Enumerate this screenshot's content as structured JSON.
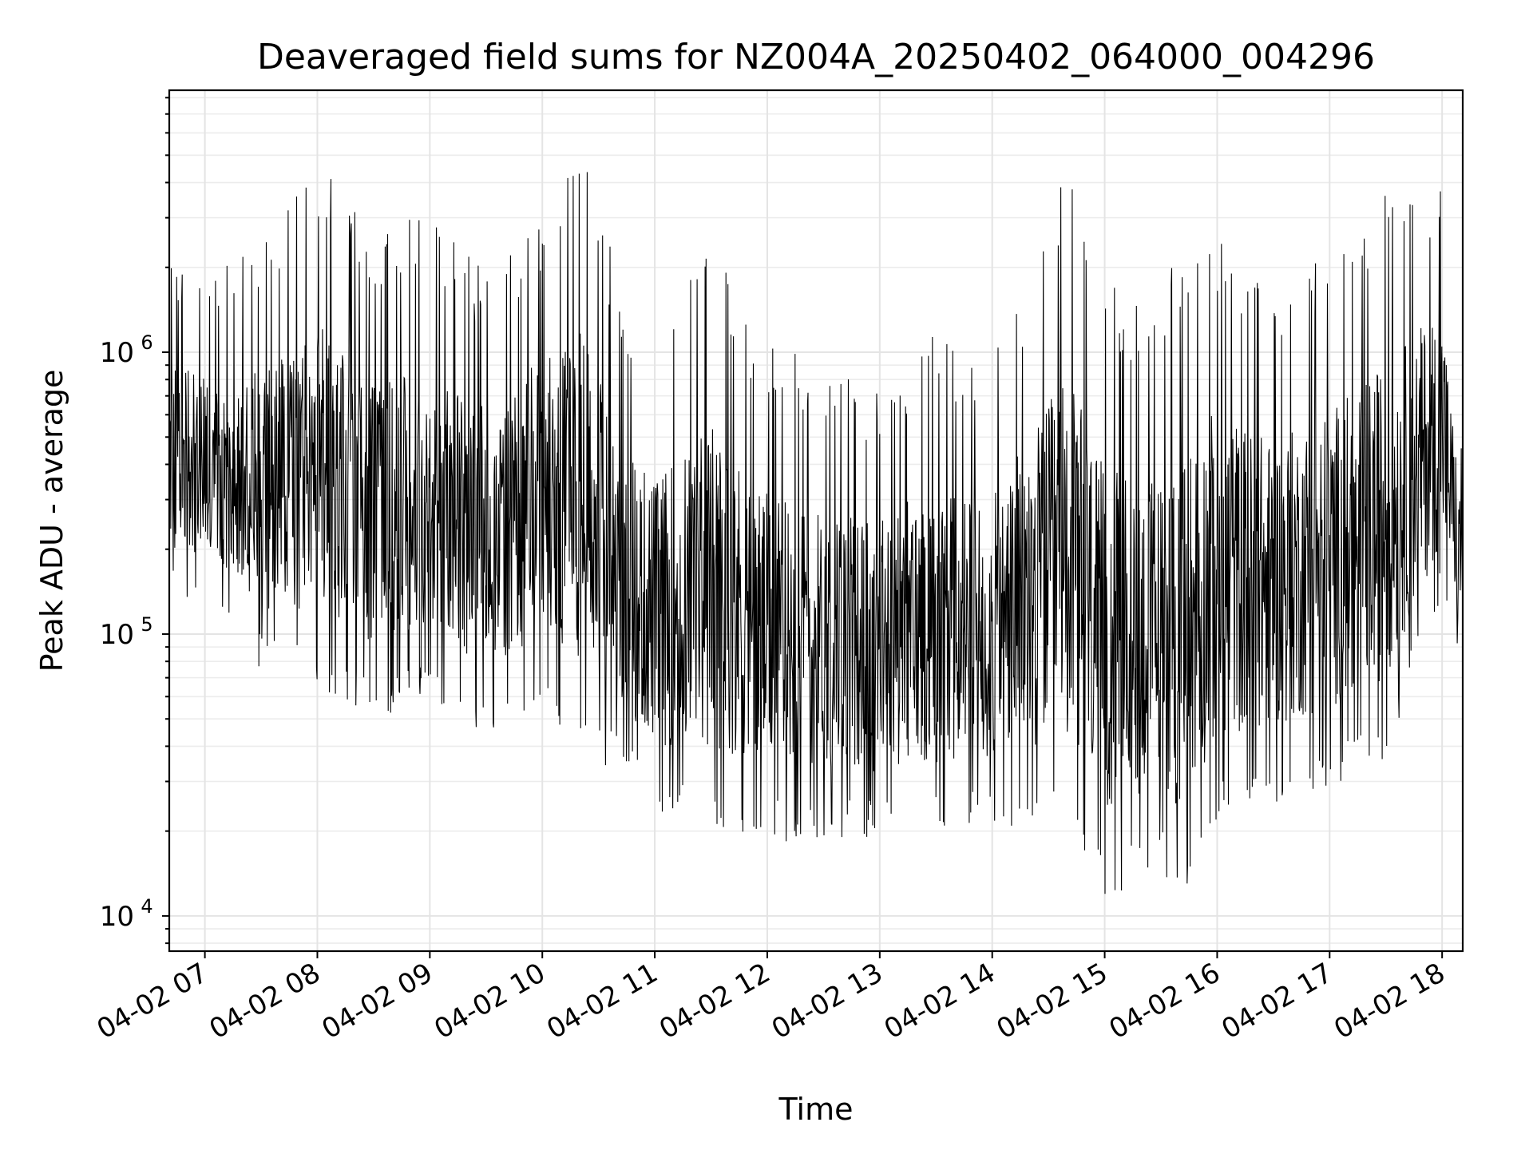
{
  "chart_data": {
    "type": "line",
    "title": "Deaveraged field sums for NZ004A_20250402_064000_004296",
    "xlabel": "Time",
    "ylabel": "Peak ADU - average",
    "y_scale": "log",
    "xlim": [
      "2025-04-02 06:41",
      "2025-04-02 18:11"
    ],
    "ylim": [
      7500,
      8500000
    ],
    "x_ticks": [
      "04-02 07",
      "04-02 08",
      "04-02 09",
      "04-02 10",
      "04-02 11",
      "04-02 12",
      "04-02 13",
      "04-02 14",
      "04-02 15",
      "04-02 16",
      "04-02 17",
      "04-02 18"
    ],
    "y_ticks": [
      {
        "value": 10000,
        "base": "10",
        "exp": "4"
      },
      {
        "value": 100000,
        "base": "10",
        "exp": "5"
      },
      {
        "value": 1000000,
        "base": "10",
        "exp": "6"
      }
    ],
    "grid": true,
    "line_color": "#000000",
    "series": [
      {
        "note_hidden": false,
        "x_start": "2025-04-02 06:41",
        "x_end": "2025-04-02 18:11",
        "envelope": [
          {
            "x": "2025-04-02 06:41",
            "low": 120000,
            "high": 2300000
          },
          {
            "x": "2025-04-02 07:00",
            "low": 150000,
            "high": 1700000
          },
          {
            "x": "2025-04-02 07:30",
            "low": 70000,
            "high": 2800000
          },
          {
            "x": "2025-04-02 08:00",
            "low": 65000,
            "high": 4800000
          },
          {
            "x": "2025-04-02 08:30",
            "low": 50000,
            "high": 2700000
          },
          {
            "x": "2025-04-02 09:00",
            "low": 55000,
            "high": 3300000
          },
          {
            "x": "2025-04-02 09:30",
            "low": 45000,
            "high": 2000000
          },
          {
            "x": "2025-04-02 10:00",
            "low": 50000,
            "high": 3500000
          },
          {
            "x": "2025-04-02 10:20",
            "low": 40000,
            "high": 6000000
          },
          {
            "x": "2025-04-02 10:45",
            "low": 30000,
            "high": 1500000
          },
          {
            "x": "2025-04-02 11:00",
            "low": 22000,
            "high": 1200000
          },
          {
            "x": "2025-04-02 11:30",
            "low": 20000,
            "high": 2500000
          },
          {
            "x": "2025-04-02 12:00",
            "low": 18000,
            "high": 1100000
          },
          {
            "x": "2025-04-02 12:30",
            "low": 19000,
            "high": 900000
          },
          {
            "x": "2025-04-02 13:00",
            "low": 18500,
            "high": 800000
          },
          {
            "x": "2025-04-02 13:30",
            "low": 19000,
            "high": 1300000
          },
          {
            "x": "2025-04-02 14:00",
            "low": 20000,
            "high": 1000000
          },
          {
            "x": "2025-04-02 14:40",
            "low": 20000,
            "high": 4500000
          },
          {
            "x": "2025-04-02 15:00",
            "low": 11000,
            "high": 1800000
          },
          {
            "x": "2025-04-02 15:30",
            "low": 15000,
            "high": 1500000
          },
          {
            "x": "2025-04-02 15:40",
            "low": 10000,
            "high": 2500000
          },
          {
            "x": "2025-04-02 16:00",
            "low": 21000,
            "high": 2900000
          },
          {
            "x": "2025-04-02 16:30",
            "low": 25000,
            "high": 1800000
          },
          {
            "x": "2025-04-02 17:00",
            "low": 28000,
            "high": 2500000
          },
          {
            "x": "2025-04-02 17:30",
            "low": 35000,
            "high": 3900000
          },
          {
            "x": "2025-04-02 18:00",
            "low": 130000,
            "high": 4300000
          },
          {
            "x": "2025-04-02 18:11",
            "low": 75000,
            "high": 450000
          }
        ]
      }
    ]
  }
}
